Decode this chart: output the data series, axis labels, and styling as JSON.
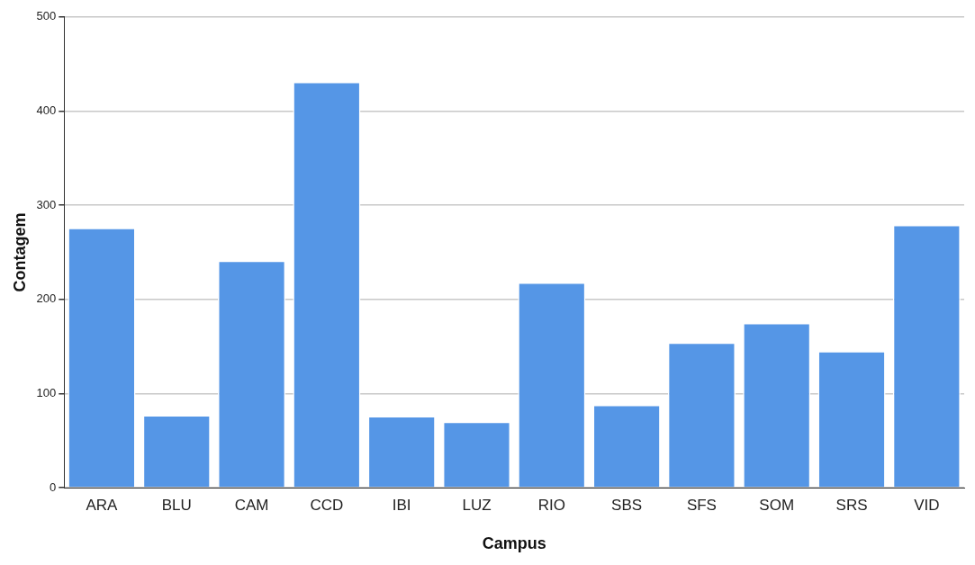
{
  "chart_data": {
    "type": "bar",
    "xlabel": "Campus",
    "ylabel": "Contagem",
    "categories": [
      "ARA",
      "BLU",
      "CAM",
      "CCD",
      "IBI",
      "LUZ",
      "RIO",
      "SBS",
      "SFS",
      "SOM",
      "SRS",
      "VID"
    ],
    "values": [
      276,
      77,
      241,
      431,
      76,
      70,
      218,
      88,
      154,
      175,
      145,
      279
    ],
    "color": "#5596e6",
    "ylim": [
      0,
      500
    ],
    "yticks": [
      0,
      100,
      200,
      300,
      400,
      500
    ],
    "grid": "y",
    "legend": false
  }
}
